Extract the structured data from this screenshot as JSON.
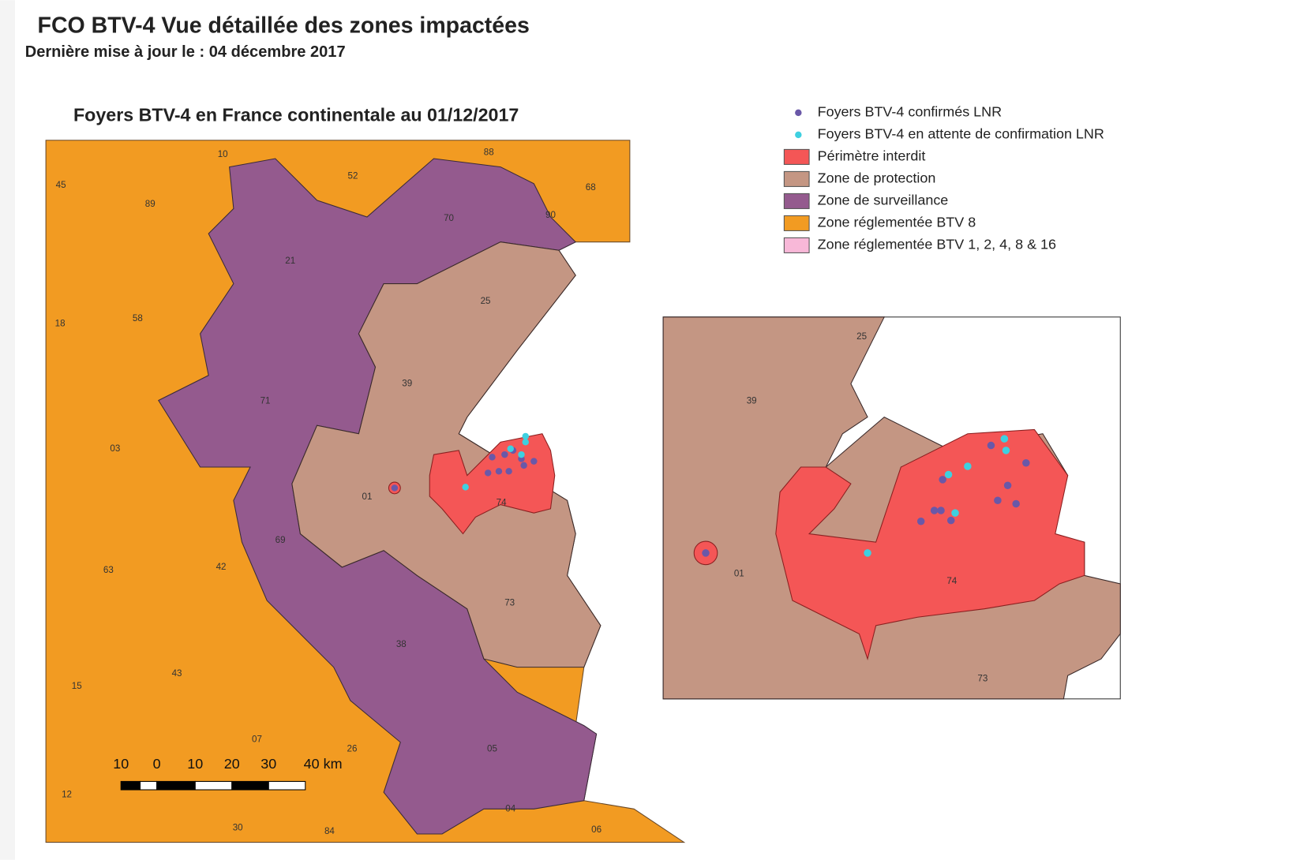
{
  "header": {
    "title": "FCO BTV-4  Vue détaillée des zones impactées",
    "subtitle": "Dernière mise à jour le : 04 décembre 2017"
  },
  "map": {
    "title": "Foyers BTV-4 en France continentale au 01/12/2017",
    "departments": [
      "10",
      "88",
      "45",
      "52",
      "68",
      "89",
      "70",
      "90",
      "21",
      "25",
      "18",
      "58",
      "39",
      "71",
      "03",
      "01",
      "74",
      "69",
      "63",
      "42",
      "73",
      "38",
      "43",
      "15",
      "07",
      "26",
      "05",
      "12",
      "04",
      "06",
      "84",
      "30"
    ],
    "scale": [
      "10",
      "0",
      "10",
      "20",
      "30",
      "40 km"
    ]
  },
  "legend": [
    "Foyers BTV-4 confirmés LNR",
    "Foyers BTV-4 en attente de confirmation LNR",
    "Périmètre interdit",
    "Zone de protection",
    "Zone de surveillance",
    "Zone réglementée  BTV 8",
    "Zone réglementée BTV 1, 2, 4, 8 & 16"
  ],
  "inset": {
    "departments": [
      "25",
      "39",
      "01",
      "74",
      "73"
    ]
  }
}
